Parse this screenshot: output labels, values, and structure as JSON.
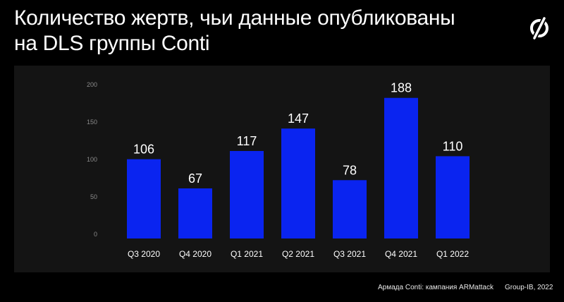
{
  "header": {
    "title_line1": "Количество жертв, чьи данные опубликованы",
    "title_line2": "на DLS группы Conti"
  },
  "logo": {
    "icon": "group-ib-logo-icon"
  },
  "footer": {
    "source": "Армада Conti: кампания ARMattack",
    "credit": "Group-IB, 2022"
  },
  "colors": {
    "background": "#000000",
    "panel": "#141414",
    "bar": "#0a24f0",
    "text": "#ffffff",
    "axis_text": "#8a8a8a",
    "grid": "#2e2e2e"
  },
  "chart_data": {
    "type": "bar",
    "title": "",
    "xlabel": "",
    "ylabel": "",
    "categories": [
      "Q3 2020",
      "Q4 2020",
      "Q1 2021",
      "Q2 2021",
      "Q3 2021",
      "Q4 2021",
      "Q1 2022"
    ],
    "values": [
      106,
      67,
      117,
      147,
      78,
      188,
      110
    ],
    "data_labels": [
      "106",
      "67",
      "117",
      "147",
      "78",
      "188",
      "110"
    ],
    "yticks": [
      0,
      50,
      100,
      150,
      200
    ],
    "ytick_labels": [
      "0",
      "50",
      "100",
      "150",
      "200"
    ],
    "ylim": [
      0,
      200
    ],
    "grid": false,
    "legend": "none"
  }
}
